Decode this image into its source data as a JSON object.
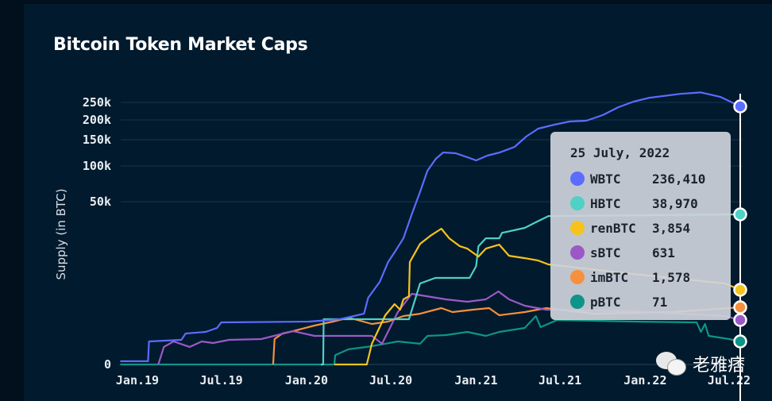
{
  "title": "Bitcoin Token Market Caps",
  "watermark": "老雅痞",
  "tooltip": {
    "date": "25 July, 2022",
    "rows": [
      {
        "name": "WBTC",
        "value": "236,410",
        "color": "#5b6cff"
      },
      {
        "name": "HBTC",
        "value": "38,970",
        "color": "#4fd1c5"
      },
      {
        "name": "renBTC",
        "value": "3,854",
        "color": "#f6c31c"
      },
      {
        "name": "sBTC",
        "value": "631",
        "color": "#9b59c6"
      },
      {
        "name": "imBTC",
        "value": "1,578",
        "color": "#f6903d"
      },
      {
        "name": "pBTC",
        "value": "71",
        "color": "#0e9488"
      }
    ]
  },
  "chart_data": {
    "type": "line",
    "title": "Bitcoin Token Market Caps",
    "ylabel": "Supply (in BTC)",
    "xlabel": "",
    "yticks": [
      0,
      50000,
      100000,
      150000,
      200000,
      250000
    ],
    "ytick_labels": [
      "0",
      "50k",
      "100k",
      "150k",
      "200k",
      "250k"
    ],
    "xtick_labels": [
      "Jan.19",
      "Jul.19",
      "Jan.20",
      "Jul.20",
      "Jan.21",
      "Jul.21",
      "Jan.22",
      "Jul.22"
    ],
    "xticks": [
      "2019-01-01",
      "2019-07-01",
      "2020-01-01",
      "2020-07-01",
      "2021-01-01",
      "2021-07-01",
      "2022-01-01",
      "2022-07-01"
    ],
    "yscale": "compressed (non-linear)",
    "grid": "horizontal",
    "hover_date": "2022-07-25",
    "series": [
      {
        "name": "WBTC",
        "color": "#5b6cff",
        "points": [
          [
            "2018-11-25",
            10
          ],
          [
            "2019-01-24",
            10
          ],
          [
            "2019-01-26",
            71
          ],
          [
            "2019-04-06",
            112
          ],
          [
            "2019-04-15",
            278
          ],
          [
            "2019-05-28",
            319
          ],
          [
            "2019-06-22",
            423
          ],
          [
            "2019-07-01",
            568
          ],
          [
            "2020-01-06",
            590
          ],
          [
            "2020-03-13",
            690
          ],
          [
            "2020-05-04",
            1100
          ],
          [
            "2020-05-13",
            2814
          ],
          [
            "2020-06-07",
            7544
          ],
          [
            "2020-06-25",
            16769
          ],
          [
            "2020-07-12",
            22304
          ],
          [
            "2020-07-28",
            27839
          ],
          [
            "2020-08-15",
            38970
          ],
          [
            "2020-09-03",
            65554
          ],
          [
            "2020-09-18",
            93334
          ],
          [
            "2020-10-06",
            113635
          ],
          [
            "2020-10-22",
            125755
          ],
          [
            "2020-11-18",
            124240
          ],
          [
            "2020-12-13",
            116665
          ],
          [
            "2021-01-01",
            110605
          ],
          [
            "2021-01-25",
            119695
          ],
          [
            "2021-02-21",
            125755
          ],
          [
            "2021-03-25",
            136360
          ],
          [
            "2021-04-19",
            158000
          ],
          [
            "2021-05-15",
            178000
          ],
          [
            "2021-06-19",
            188000
          ],
          [
            "2021-07-22",
            196000
          ],
          [
            "2021-08-27",
            198000
          ],
          [
            "2021-10-01",
            212850
          ],
          [
            "2021-11-04",
            234270
          ],
          [
            "2021-12-07",
            252718
          ],
          [
            "2022-01-10",
            266308
          ],
          [
            "2022-03-18",
            279898
          ],
          [
            "2022-05-01",
            285000
          ],
          [
            "2022-06-13",
            269000
          ],
          [
            "2022-07-25",
            236410
          ]
        ]
      },
      {
        "name": "HBTC",
        "color": "#4fd1c5",
        "points": [
          [
            "2020-02-01",
            0
          ],
          [
            "2020-02-06",
            0
          ],
          [
            "2020-02-07",
            690
          ],
          [
            "2020-08-09",
            690
          ],
          [
            "2020-09-02",
            6800
          ],
          [
            "2020-10-05",
            9400
          ],
          [
            "2020-12-18",
            9400
          ],
          [
            "2021-01-01",
            14900
          ],
          [
            "2021-01-06",
            24150
          ],
          [
            "2021-01-22",
            27840
          ],
          [
            "2021-02-20",
            27840
          ],
          [
            "2021-02-26",
            30400
          ],
          [
            "2021-04-16",
            32700
          ],
          [
            "2021-05-10",
            35300
          ],
          [
            "2021-06-06",
            38200
          ],
          [
            "2022-07-25",
            38970
          ]
        ]
      },
      {
        "name": "renBTC",
        "color": "#f6c31c",
        "points": [
          [
            "2020-03-01",
            0
          ],
          [
            "2020-05-10",
            0
          ],
          [
            "2020-05-21",
            64
          ],
          [
            "2020-06-19",
            985
          ],
          [
            "2020-07-09",
            1990
          ],
          [
            "2020-07-21",
            1398
          ],
          [
            "2020-07-28",
            2608
          ],
          [
            "2020-08-09",
            3020
          ],
          [
            "2020-08-11",
            16770
          ],
          [
            "2020-09-02",
            25250
          ],
          [
            "2020-09-24",
            28950
          ],
          [
            "2020-10-18",
            32300
          ],
          [
            "2020-11-04",
            27840
          ],
          [
            "2020-11-27",
            24150
          ],
          [
            "2020-12-13",
            23040
          ],
          [
            "2021-01-06",
            19350
          ],
          [
            "2021-01-22",
            23040
          ],
          [
            "2021-02-20",
            24900
          ],
          [
            "2021-03-13",
            19700
          ],
          [
            "2021-04-16",
            18600
          ],
          [
            "2021-05-15",
            17500
          ],
          [
            "2021-06-06",
            15700
          ],
          [
            "2021-12-07",
            11200
          ],
          [
            "2022-06-22",
            6800
          ],
          [
            "2022-07-25",
            3854
          ]
        ]
      },
      {
        "name": "sBTC",
        "color": "#9b59c6",
        "points": [
          [
            "2019-02-15",
            0
          ],
          [
            "2019-02-27",
            54
          ],
          [
            "2019-03-20",
            71
          ],
          [
            "2019-04-24",
            54
          ],
          [
            "2019-05-20",
            71
          ],
          [
            "2019-06-13",
            66
          ],
          [
            "2019-07-18",
            112
          ],
          [
            "2019-09-25",
            133
          ],
          [
            "2019-12-03",
            340
          ],
          [
            "2020-01-18",
            216
          ],
          [
            "2020-05-21",
            216
          ],
          [
            "2020-06-12",
            64
          ],
          [
            "2020-07-16",
            1221
          ],
          [
            "2020-08-15",
            3340
          ],
          [
            "2020-10-28",
            2608
          ],
          [
            "2020-12-13",
            2300
          ],
          [
            "2021-01-22",
            2608
          ],
          [
            "2021-02-18",
            3650
          ],
          [
            "2021-03-13",
            2608
          ],
          [
            "2021-04-16",
            1784
          ],
          [
            "2021-06-01",
            1398
          ],
          [
            "2021-12-07",
            1280
          ],
          [
            "2022-06-22",
            926
          ],
          [
            "2022-07-25",
            631
          ]
        ]
      },
      {
        "name": "imBTC",
        "color": "#f6903d",
        "points": [
          [
            "2019-10-21",
            0
          ],
          [
            "2019-10-24",
            133
          ],
          [
            "2019-11-10",
            278
          ],
          [
            "2019-12-03",
            340
          ],
          [
            "2020-01-18",
            485
          ],
          [
            "2020-02-27",
            590
          ],
          [
            "2020-04-01",
            808
          ],
          [
            "2020-05-21",
            527
          ],
          [
            "2020-06-25",
            590
          ],
          [
            "2020-07-28",
            926
          ],
          [
            "2020-09-02",
            1100
          ],
          [
            "2020-10-18",
            1520
          ],
          [
            "2020-11-11",
            1221
          ],
          [
            "2020-12-25",
            1398
          ],
          [
            "2021-01-29",
            1520
          ],
          [
            "2021-02-20",
            985
          ],
          [
            "2021-04-16",
            1221
          ],
          [
            "2021-06-01",
            1520
          ],
          [
            "2021-09-13",
            1100
          ],
          [
            "2022-03-01",
            1221
          ],
          [
            "2022-07-25",
            1578
          ]
        ]
      },
      {
        "name": "pBTC",
        "color": "#0e9488",
        "points": [
          [
            "2018-11-25",
            0
          ],
          [
            "2020-03-01",
            0
          ],
          [
            "2020-03-03",
            29
          ],
          [
            "2020-04-01",
            47
          ],
          [
            "2020-05-10",
            54
          ],
          [
            "2020-06-19",
            64
          ],
          [
            "2020-07-16",
            71
          ],
          [
            "2020-09-02",
            64
          ],
          [
            "2020-09-18",
            216
          ],
          [
            "2020-10-28",
            237
          ],
          [
            "2020-12-13",
            319
          ],
          [
            "2021-01-22",
            216
          ],
          [
            "2021-02-20",
            319
          ],
          [
            "2021-04-16",
            423
          ],
          [
            "2021-05-10",
            926
          ],
          [
            "2021-05-20",
            444
          ],
          [
            "2021-06-25",
            631
          ],
          [
            "2021-12-07",
            590
          ],
          [
            "2022-04-22",
            568
          ],
          [
            "2022-05-01",
            319
          ],
          [
            "2022-05-10",
            527
          ],
          [
            "2022-05-18",
            216
          ],
          [
            "2022-07-01",
            133
          ],
          [
            "2022-07-25",
            71
          ]
        ]
      }
    ]
  }
}
